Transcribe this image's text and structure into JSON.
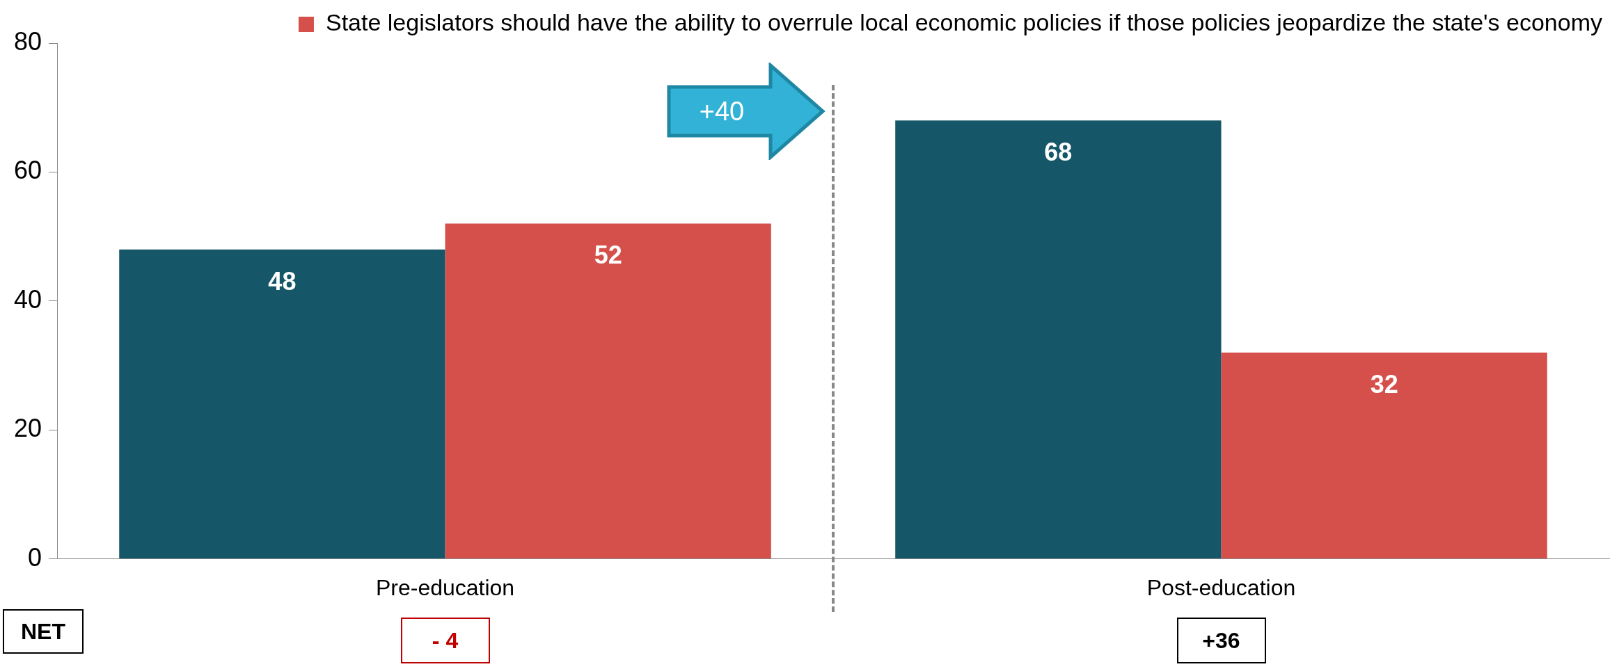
{
  "chart_data": {
    "type": "bar",
    "categories": [
      "Pre-education",
      "Post-education"
    ],
    "series": [
      {
        "color": "#155668",
        "values": [
          48,
          68
        ]
      },
      {
        "name": "State legislators should have the ability to overrule local economic policies if those policies jeopardize the state's economy",
        "color": "#d5504a",
        "values": [
          52,
          32
        ]
      }
    ],
    "ylim": [
      0,
      80
    ],
    "yticks": [
      0,
      20,
      40,
      60,
      80
    ],
    "grid": false,
    "legend": "top",
    "data_labels": true,
    "annotations": [
      "+40",
      "NET",
      "- 4",
      "+36"
    ]
  }
}
